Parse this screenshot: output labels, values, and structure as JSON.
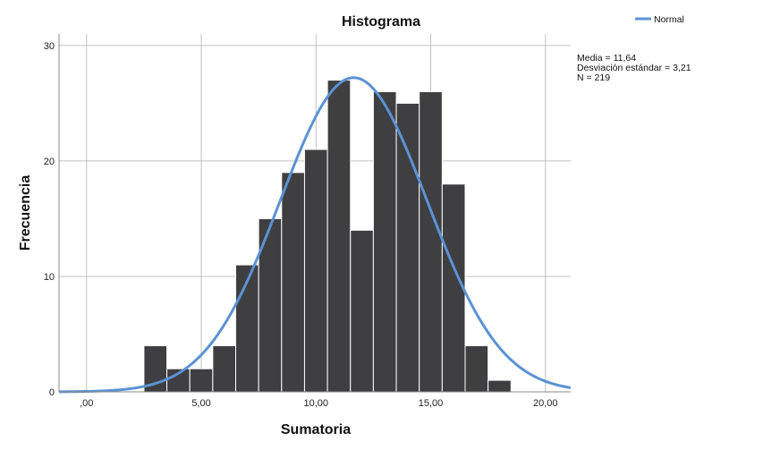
{
  "chart_data": {
    "type": "bar",
    "title": "Histograma",
    "xlabel": "Sumatoria",
    "ylabel": "Frecuencia",
    "xlim": [
      -1.2,
      21.1
    ],
    "ylim": [
      0,
      31
    ],
    "x_ticks": [
      0,
      5,
      10,
      15,
      20
    ],
    "x_tick_labels": [
      ",00",
      "5,00",
      "10,00",
      "15,00",
      "20,00"
    ],
    "y_ticks": [
      0,
      10,
      20,
      30
    ],
    "y_tick_labels": [
      "0",
      "10",
      "20",
      "30"
    ],
    "grid": true,
    "bin_width": 1,
    "bins": [
      {
        "start": 2.5,
        "end": 3.5,
        "count": 4
      },
      {
        "start": 3.5,
        "end": 4.5,
        "count": 2
      },
      {
        "start": 4.5,
        "end": 5.5,
        "count": 2
      },
      {
        "start": 5.5,
        "end": 6.5,
        "count": 4
      },
      {
        "start": 6.5,
        "end": 7.5,
        "count": 11
      },
      {
        "start": 7.5,
        "end": 8.5,
        "count": 15
      },
      {
        "start": 8.5,
        "end": 9.5,
        "count": 19
      },
      {
        "start": 9.5,
        "end": 10.5,
        "count": 21
      },
      {
        "start": 10.5,
        "end": 11.5,
        "count": 27
      },
      {
        "start": 11.5,
        "end": 12.5,
        "count": 14
      },
      {
        "start": 12.5,
        "end": 13.5,
        "count": 26
      },
      {
        "start": 13.5,
        "end": 14.5,
        "count": 25
      },
      {
        "start": 14.5,
        "end": 15.5,
        "count": 26
      },
      {
        "start": 15.5,
        "end": 16.5,
        "count": 18
      },
      {
        "start": 16.5,
        "end": 17.5,
        "count": 4
      },
      {
        "start": 17.5,
        "end": 18.5,
        "count": 1
      }
    ],
    "normal_curve": {
      "name": "Normal",
      "mean": 11.64,
      "sd": 3.21,
      "n": 219
    },
    "stats": [
      "Media = 11,64",
      "Desviación estándar = 3,21",
      "N = 219"
    ],
    "legend": {
      "entries": [
        "Normal"
      ],
      "position": "top-right"
    },
    "colors": {
      "bar": "#3f3f41",
      "bar_edge": "#ffffff",
      "curve": "#5b92d3",
      "grid": "#c0c0c0",
      "axis": "#8a8a8a"
    }
  }
}
